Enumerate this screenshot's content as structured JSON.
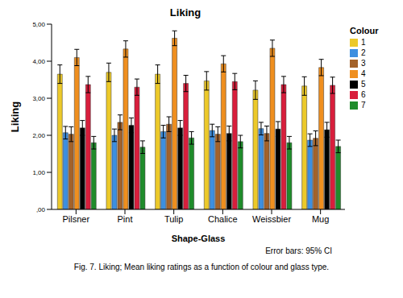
{
  "chart_data": {
    "type": "bar",
    "title": "Liking",
    "x_label": "Shape-Glass",
    "y_label": "Liking",
    "legend_title": "Colour",
    "legend": "right",
    "grid": false,
    "annotation": "Error bars: 95% CI",
    "caption": "Fig. 7. Liking; Mean liking ratings as a function of colour and glass type.",
    "categories": [
      "Pilsner",
      "Pint",
      "Tulip",
      "Chalice",
      "Weissbier",
      "Mug"
    ],
    "ylim": [
      0,
      5
    ],
    "yticks": [
      {
        "value": 0,
        "label": ",00"
      },
      {
        "value": 1,
        "label": "1,00"
      },
      {
        "value": 2,
        "label": "2,00"
      },
      {
        "value": 3,
        "label": "3,00"
      },
      {
        "value": 4,
        "label": "4,00"
      },
      {
        "value": 5,
        "label": "5,00"
      }
    ],
    "series": [
      {
        "name": "1",
        "color": "#ecc92a",
        "values": [
          3.65,
          3.7,
          3.65,
          3.47,
          3.22,
          3.33
        ],
        "errors": [
          0.25,
          0.25,
          0.25,
          0.25,
          0.25,
          0.25
        ]
      },
      {
        "name": "2",
        "color": "#3d8fe0",
        "values": [
          2.07,
          2.0,
          2.1,
          2.13,
          2.18,
          1.87
        ],
        "errors": [
          0.17,
          0.17,
          0.17,
          0.17,
          0.17,
          0.17
        ]
      },
      {
        "name": "3",
        "color": "#a3622a",
        "values": [
          2.03,
          2.35,
          2.3,
          2.03,
          2.05,
          1.92
        ],
        "errors": [
          0.2,
          0.2,
          0.2,
          0.2,
          0.2,
          0.2
        ]
      },
      {
        "name": "4",
        "color": "#ef8f1f",
        "values": [
          4.1,
          4.33,
          4.62,
          3.93,
          4.35,
          3.83
        ],
        "errors": [
          0.22,
          0.22,
          0.2,
          0.22,
          0.22,
          0.22
        ]
      },
      {
        "name": "5",
        "color": "#000000",
        "values": [
          2.2,
          2.27,
          2.2,
          2.05,
          2.17,
          2.15
        ],
        "errors": [
          0.2,
          0.2,
          0.2,
          0.2,
          0.2,
          0.2
        ]
      },
      {
        "name": "6",
        "color": "#d81e3c",
        "values": [
          3.37,
          3.3,
          3.4,
          3.45,
          3.37,
          3.35
        ],
        "errors": [
          0.22,
          0.22,
          0.22,
          0.22,
          0.22,
          0.22
        ]
      },
      {
        "name": "7",
        "color": "#1f8c2b",
        "values": [
          1.8,
          1.68,
          1.93,
          1.83,
          1.8,
          1.7
        ],
        "errors": [
          0.17,
          0.17,
          0.17,
          0.17,
          0.17,
          0.17
        ]
      }
    ]
  }
}
